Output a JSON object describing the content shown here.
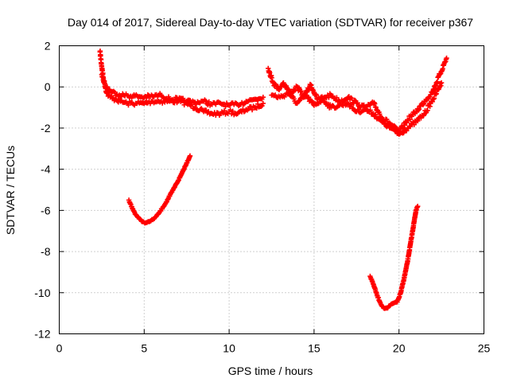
{
  "chart_data": {
    "type": "scatter",
    "title": "Day 014 of 2017, Sidereal Day-to-day VTEC variation (SDTVAR) for receiver p367",
    "xlabel": "GPS time / hours",
    "ylabel": "SDTVAR / TECUs",
    "xlim": [
      0,
      25
    ],
    "ylim": [
      -12,
      2
    ],
    "xticks": [
      0,
      5,
      10,
      15,
      20,
      25
    ],
    "yticks": [
      -12,
      -10,
      -8,
      -6,
      -4,
      -2,
      0,
      2
    ],
    "grid": true,
    "marker": "+",
    "color": "#ff0000",
    "series": [
      {
        "name": "upper trace, lower band",
        "x": [
          2.4,
          2.5,
          2.6,
          2.8,
          3.0,
          3.3,
          3.6,
          4.0,
          4.5,
          5.0,
          5.5,
          6.0,
          6.5,
          7.0,
          7.5,
          8.0,
          8.5,
          9.0,
          9.5,
          10.0,
          10.5,
          11.0,
          11.5,
          12.0
        ],
        "y": [
          1.7,
          1.0,
          0.4,
          -0.3,
          -0.5,
          -0.6,
          -0.7,
          -0.8,
          -0.8,
          -0.8,
          -0.7,
          -0.7,
          -0.7,
          -0.7,
          -0.8,
          -1.0,
          -1.2,
          -1.3,
          -1.3,
          -1.2,
          -1.3,
          -1.1,
          -1.0,
          -0.8
        ]
      },
      {
        "name": "upper trace, upper band",
        "x": [
          2.5,
          2.7,
          3.0,
          3.4,
          3.8,
          4.2,
          4.6,
          5.0,
          5.5,
          6.0,
          6.5,
          7.0,
          7.5,
          8.0,
          8.5,
          9.0,
          9.5,
          10.0,
          10.5,
          11.0,
          11.5,
          12.0
        ],
        "y": [
          0.6,
          0.1,
          -0.2,
          -0.35,
          -0.4,
          -0.45,
          -0.45,
          -0.5,
          -0.45,
          -0.4,
          -0.6,
          -0.6,
          -0.7,
          -0.75,
          -0.7,
          -0.85,
          -0.8,
          -0.9,
          -0.85,
          -0.7,
          -0.6,
          -0.5
        ]
      },
      {
        "name": "upper trace, second segment",
        "x": [
          12.3,
          12.6,
          12.9,
          13.2,
          13.6,
          14.0,
          14.4,
          14.8,
          15.2,
          15.6,
          16.0,
          16.5,
          17.0,
          17.5,
          18.0,
          18.5,
          19.0,
          19.5,
          20.0,
          20.5,
          21.0,
          21.5,
          22.0,
          22.4,
          22.8
        ],
        "y": [
          0.9,
          0.2,
          -0.1,
          0.2,
          -0.3,
          0.0,
          -0.5,
          0.1,
          -0.6,
          -0.5,
          -0.4,
          -0.7,
          -0.5,
          -0.8,
          -1.0,
          -0.8,
          -1.5,
          -1.8,
          -2.2,
          -1.6,
          -1.2,
          -0.7,
          -0.2,
          0.6,
          1.4
        ]
      },
      {
        "name": "upper trace, second segment lower band",
        "x": [
          12.5,
          13.0,
          13.5,
          14.0,
          14.5,
          15.0,
          15.5,
          16.0,
          16.5,
          17.0,
          17.5,
          18.0,
          18.5,
          19.0,
          19.5,
          20.0,
          20.5,
          21.0,
          21.5,
          22.0,
          22.5
        ],
        "y": [
          -0.4,
          -0.5,
          -0.3,
          -0.8,
          -0.4,
          -0.9,
          -0.6,
          -1.0,
          -0.9,
          -0.8,
          -1.2,
          -1.1,
          -1.3,
          -1.7,
          -2.0,
          -2.3,
          -2.0,
          -1.7,
          -1.3,
          -0.6,
          0.2
        ]
      },
      {
        "name": "lower trace near 6h",
        "x": [
          4.1,
          4.3,
          4.5,
          4.7,
          4.9,
          5.1,
          5.3,
          5.5,
          5.7,
          5.9,
          6.1,
          6.3,
          6.5,
          6.7,
          6.9,
          7.1,
          7.3,
          7.5,
          7.7
        ],
        "y": [
          -5.5,
          -5.9,
          -6.2,
          -6.4,
          -6.55,
          -6.6,
          -6.55,
          -6.45,
          -6.3,
          -6.1,
          -5.85,
          -5.6,
          -5.3,
          -5.0,
          -4.7,
          -4.4,
          -4.05,
          -3.7,
          -3.35
        ]
      },
      {
        "name": "lower trace near 20h",
        "x": [
          18.3,
          18.5,
          18.7,
          18.9,
          19.1,
          19.3,
          19.5,
          19.7,
          19.9,
          20.1,
          20.3,
          20.4,
          20.5,
          20.6,
          20.7,
          20.8,
          20.9,
          21.0,
          21.1
        ],
        "y": [
          -9.2,
          -9.6,
          -10.1,
          -10.5,
          -10.75,
          -10.75,
          -10.6,
          -10.5,
          -10.45,
          -10.0,
          -9.3,
          -8.9,
          -8.5,
          -8.0,
          -7.5,
          -7.0,
          -6.5,
          -6.0,
          -5.8
        ]
      }
    ]
  }
}
